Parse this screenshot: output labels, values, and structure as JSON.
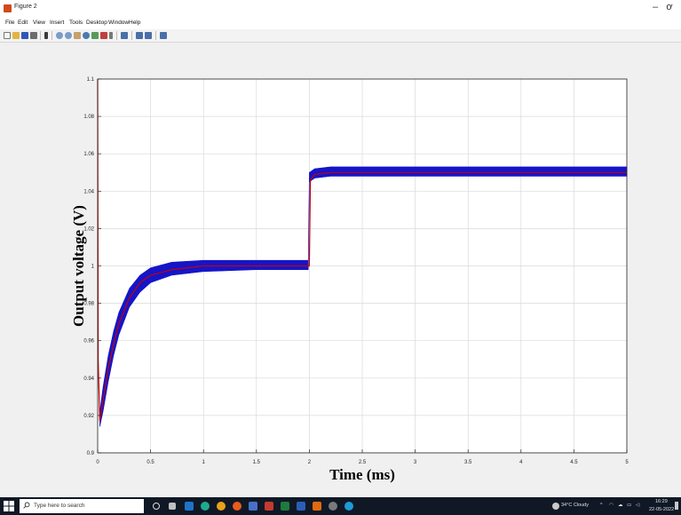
{
  "window": {
    "title": "Figure 2",
    "minimize_glyph": "–",
    "restore_glyph": "ơ"
  },
  "menu": [
    "File",
    "Edit",
    "View",
    "Insert",
    "Tools",
    "Desktop",
    "Window",
    "Help"
  ],
  "toolbar_icons": [
    "new-figure-icon",
    "open-file-icon",
    "save-icon",
    "print-icon",
    "edit-plot-icon",
    "zoom-in-icon",
    "zoom-out-icon",
    "pan-icon",
    "rotate-3d-icon",
    "data-cursor-icon",
    "brush-icon",
    "link-plot-icon",
    "insert-colorbar-icon",
    "insert-legend-icon",
    "hide-plot-tools-icon",
    "show-plot-tools-icon"
  ],
  "colors": {
    "band": "#1515c8",
    "line": "#c80000",
    "grid": "#d9d9d9",
    "axes_bg": "#ffffff",
    "figure_bg": "#f0f0f0",
    "taskbar": "#101826"
  },
  "chart_data": {
    "type": "line",
    "title": "",
    "xlabel": "Time (ms)",
    "ylabel": "Output voltage (V)",
    "xlim": [
      0,
      5
    ],
    "ylim": [
      0.9,
      1.1
    ],
    "xticks": [
      0,
      0.5,
      1,
      1.5,
      2,
      2.5,
      3,
      3.5,
      4,
      4.5,
      5
    ],
    "xtick_labels": [
      "0",
      "0.5",
      "1",
      "1.5",
      "2",
      "2.5",
      "3",
      "3.5",
      "4",
      "4.5",
      "5"
    ],
    "yticks": [
      0.9,
      0.92,
      0.94,
      0.96,
      0.98,
      1,
      1.02,
      1.04,
      1.06,
      1.08,
      1.1
    ],
    "ytick_labels": [
      "0.9",
      "0.92",
      "0.94",
      "0.96",
      "0.98",
      "1",
      "1.02",
      "1.04",
      "1.06",
      "1.08",
      "1.1"
    ],
    "grid": true,
    "series": [
      {
        "style": "band",
        "x": [
          0.02,
          0.05,
          0.1,
          0.15,
          0.2,
          0.3,
          0.4,
          0.5,
          0.7,
          1.0,
          1.5,
          1.99,
          2.0,
          2.05,
          2.2,
          3.0,
          5.0
        ],
        "upper": [
          0.922,
          0.935,
          0.952,
          0.965,
          0.975,
          0.988,
          0.995,
          0.999,
          1.002,
          1.003,
          1.003,
          1.003,
          1.05,
          1.052,
          1.053,
          1.053,
          1.053
        ],
        "lower": [
          0.914,
          0.922,
          0.938,
          0.952,
          0.963,
          0.978,
          0.986,
          0.991,
          0.995,
          0.997,
          0.998,
          0.998,
          1.045,
          1.047,
          1.048,
          1.048,
          1.048
        ]
      },
      {
        "style": "line",
        "x": [
          0.0,
          0.005,
          0.02,
          0.05,
          0.1,
          0.15,
          0.2,
          0.3,
          0.4,
          0.5,
          0.7,
          1.0,
          1.5,
          1.99,
          2.0,
          2.01,
          2.05,
          2.2,
          3.0,
          5.0
        ],
        "y": [
          1.1,
          0.95,
          0.917,
          0.928,
          0.945,
          0.958,
          0.969,
          0.983,
          0.991,
          0.995,
          0.998,
          1.0,
          1.0,
          1.0,
          1.0,
          1.046,
          1.049,
          1.05,
          1.05,
          1.05
        ]
      }
    ]
  },
  "taskbar": {
    "search_placeholder": "Type here to search",
    "weather": "34°C  Cloudy",
    "time": "16:29",
    "date": "22-05-2022"
  }
}
